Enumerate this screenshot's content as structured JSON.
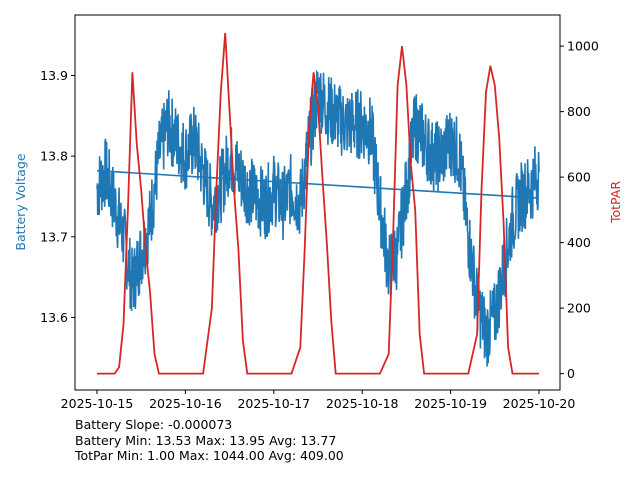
{
  "chart_data": {
    "type": "line",
    "title": "",
    "xlabel": "",
    "ylabel_left": "Battery Voltage",
    "ylabel_right": "TotPAR",
    "x_ticks": [
      "2025-10-15",
      "2025-10-16",
      "2025-10-17",
      "2025-10-18",
      "2025-10-19",
      "2025-10-20"
    ],
    "x_range": [
      "2025-10-15",
      "2025-10-20"
    ],
    "y_left_ticks": [
      "13.6",
      "13.7",
      "13.8",
      "13.9"
    ],
    "y_left_range": [
      13.51,
      13.975
    ],
    "y_right_ticks": [
      "0",
      "200",
      "400",
      "600",
      "800",
      "1000"
    ],
    "y_right_range": [
      -50,
      1095
    ],
    "grid": false,
    "colors": {
      "battery": "#1f77b4",
      "totpar": "#d62728"
    },
    "series": [
      {
        "axis": "left",
        "x": [
          0.0,
          0.1,
          0.2,
          0.3,
          0.4,
          0.5,
          0.6,
          0.7,
          0.8,
          0.9,
          1.0,
          1.1,
          1.2,
          1.3,
          1.4,
          1.5,
          1.6,
          1.7,
          1.8,
          1.9,
          2.0,
          2.1,
          2.2,
          2.3,
          2.4,
          2.5,
          2.6,
          2.7,
          2.8,
          2.9,
          3.0,
          3.1,
          3.2,
          3.3,
          3.4,
          3.5,
          3.6,
          3.7,
          3.8,
          3.9,
          4.0,
          4.1,
          4.2,
          4.3,
          4.4,
          4.5,
          4.6,
          4.7,
          4.8,
          4.9,
          5.0
        ],
        "values": [
          13.76,
          13.78,
          13.74,
          13.7,
          13.64,
          13.68,
          13.72,
          13.8,
          13.84,
          13.82,
          13.8,
          13.82,
          13.78,
          13.74,
          13.76,
          13.8,
          13.78,
          13.76,
          13.75,
          13.74,
          13.76,
          13.74,
          13.76,
          13.74,
          13.82,
          13.88,
          13.86,
          13.85,
          13.84,
          13.84,
          13.84,
          13.83,
          13.74,
          13.66,
          13.68,
          13.76,
          13.84,
          13.82,
          13.8,
          13.8,
          13.82,
          13.8,
          13.7,
          13.62,
          13.58,
          13.6,
          13.66,
          13.72,
          13.75,
          13.76,
          13.78
        ]
      },
      {
        "axis": "left",
        "x": [
          0,
          5
        ],
        "values": [
          13.782,
          13.748
        ]
      },
      {
        "axis": "right",
        "x": [
          0.0,
          0.2,
          0.25,
          0.3,
          0.35,
          0.4,
          0.45,
          0.5,
          0.55,
          0.6,
          0.65,
          0.7,
          0.8,
          1.2,
          1.3,
          1.35,
          1.4,
          1.45,
          1.5,
          1.55,
          1.6,
          1.65,
          1.7,
          2.2,
          2.3,
          2.35,
          2.4,
          2.45,
          2.5,
          2.55,
          2.6,
          2.65,
          2.7,
          3.2,
          3.3,
          3.35,
          3.4,
          3.45,
          3.5,
          3.55,
          3.6,
          3.65,
          3.7,
          4.2,
          4.3,
          4.35,
          4.4,
          4.45,
          4.5,
          4.55,
          4.6,
          4.65,
          4.7,
          5.0
        ],
        "values": [
          0,
          0,
          20,
          150,
          500,
          920,
          700,
          560,
          380,
          250,
          60,
          0,
          0,
          0,
          200,
          560,
          860,
          1040,
          800,
          560,
          380,
          100,
          0,
          0,
          80,
          380,
          760,
          920,
          820,
          600,
          400,
          160,
          0,
          0,
          60,
          420,
          880,
          1000,
          880,
          640,
          500,
          120,
          0,
          0,
          120,
          560,
          860,
          940,
          880,
          720,
          460,
          80,
          0,
          0
        ]
      }
    ],
    "annotations": [
      "Battery Slope: -0.000073",
      "Battery Min: 13.53 Max: 13.95 Avg: 13.77",
      "TotPar Min: 1.00 Max: 1044.00 Avg: 409.00"
    ]
  }
}
